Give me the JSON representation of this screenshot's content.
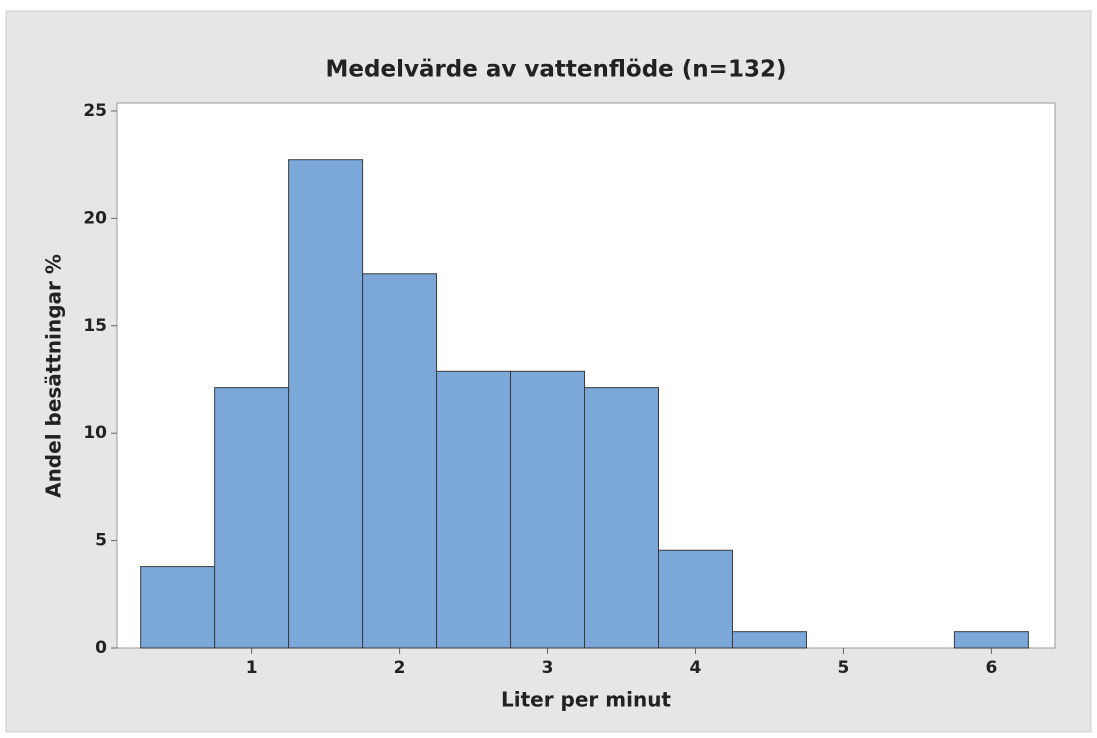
{
  "chart_data": {
    "type": "histogram",
    "title": "Medelvärde av vattenflöde (n=132)",
    "x_label": "Liter per minut",
    "y_label": "Andel besättningar %",
    "bins": [
      0.25,
      0.75,
      1.25,
      1.75,
      2.25,
      2.75,
      3.25,
      3.75,
      4.25,
      4.75,
      5.25,
      5.75,
      6.25
    ],
    "values": [
      3.79,
      12.12,
      22.73,
      17.42,
      12.88,
      12.88,
      12.12,
      4.55,
      0.76,
      0,
      0,
      0.76
    ],
    "color": "#7ba7d9",
    "xlim": [
      0.09,
      6.43
    ],
    "xticks": [
      1,
      2,
      3,
      4,
      5,
      6
    ],
    "ylim": [
      0,
      25.37
    ],
    "yticks": [
      0,
      5,
      10,
      15,
      20,
      25
    ],
    "grid": false
  }
}
